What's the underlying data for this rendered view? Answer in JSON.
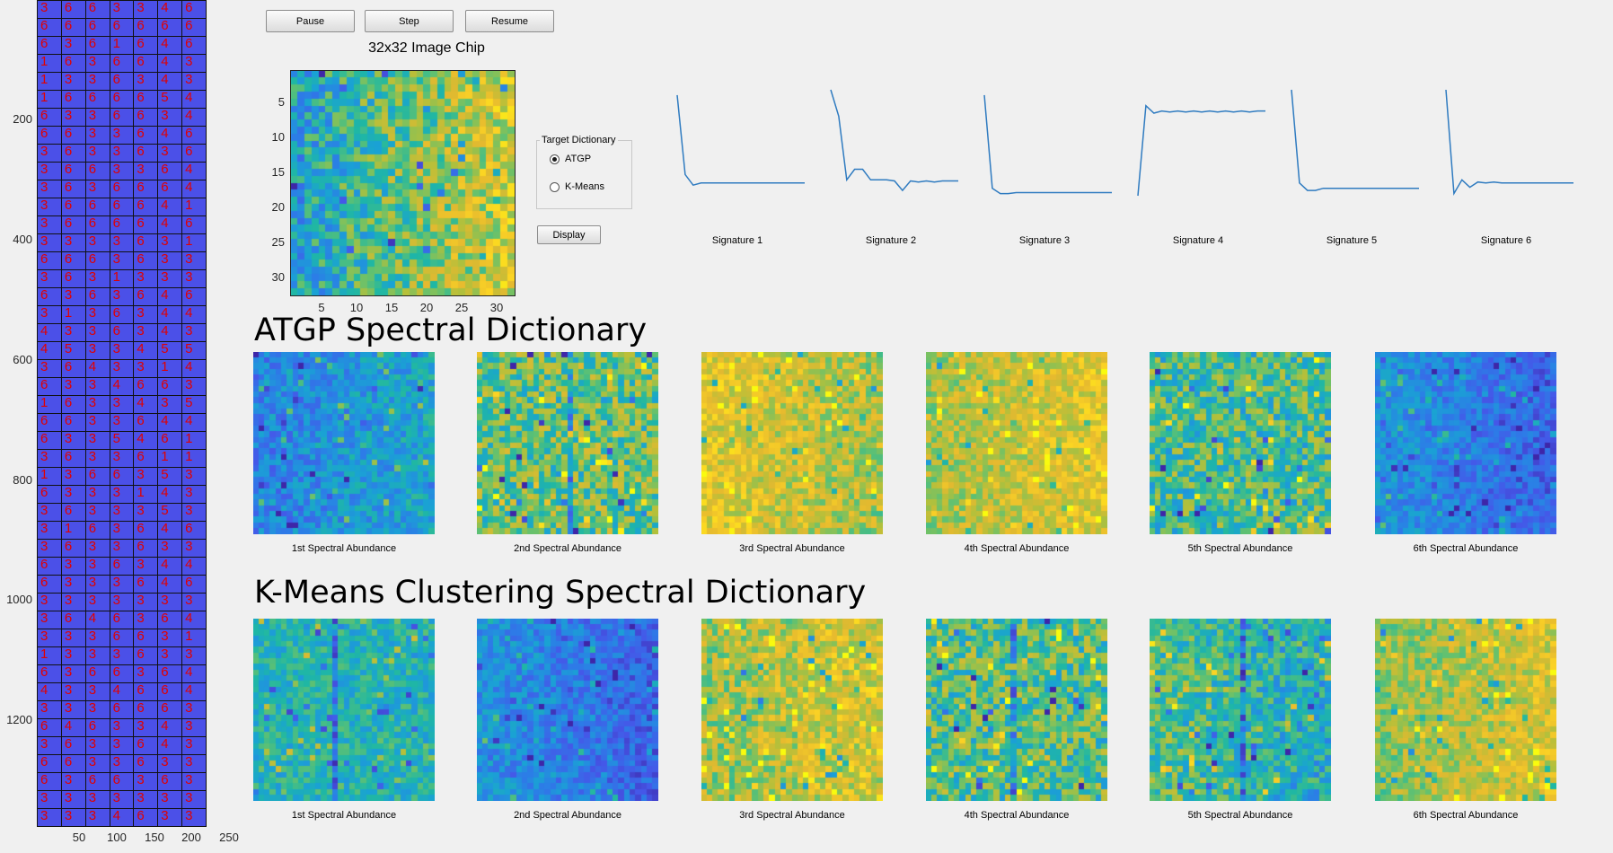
{
  "toolbar": {
    "pause_label": "Pause",
    "step_label": "Step",
    "resume_label": "Resume"
  },
  "chip": {
    "title": "32x32 Image Chip",
    "y_ticks": [
      "5",
      "10",
      "15",
      "20",
      "25",
      "30"
    ],
    "x_ticks": [
      "5",
      "10",
      "15",
      "20",
      "25",
      "30"
    ]
  },
  "target_dictionary": {
    "title": "Target Dictionary",
    "options": [
      {
        "label": "ATGP",
        "selected": true
      },
      {
        "label": "K-Means",
        "selected": false
      }
    ],
    "display_label": "Display"
  },
  "signatures": [
    {
      "label": "Signature 1",
      "values": [
        0.95,
        0.2,
        0.1,
        0.12,
        0.12,
        0.12,
        0.12,
        0.12,
        0.12,
        0.12,
        0.12,
        0.12,
        0.12,
        0.12,
        0.12,
        0.12,
        0.12
      ]
    },
    {
      "label": "Signature 2",
      "values": [
        1.0,
        0.75,
        0.15,
        0.25,
        0.25,
        0.15,
        0.15,
        0.15,
        0.14,
        0.05,
        0.14,
        0.13,
        0.14,
        0.13,
        0.14,
        0.14,
        0.14
      ]
    },
    {
      "label": "Signature 3",
      "values": [
        0.95,
        0.07,
        0.02,
        0.02,
        0.03,
        0.03,
        0.03,
        0.03,
        0.03,
        0.03,
        0.03,
        0.03,
        0.03,
        0.03,
        0.03,
        0.03,
        0.03
      ]
    },
    {
      "label": "Signature 4",
      "values": [
        0.0,
        0.85,
        0.78,
        0.8,
        0.79,
        0.8,
        0.79,
        0.8,
        0.79,
        0.8,
        0.79,
        0.8,
        0.79,
        0.8,
        0.79,
        0.8,
        0.8
      ]
    },
    {
      "label": "Signature 5",
      "values": [
        1.0,
        0.12,
        0.05,
        0.05,
        0.07,
        0.07,
        0.07,
        0.07,
        0.07,
        0.07,
        0.07,
        0.07,
        0.07,
        0.07,
        0.07,
        0.07,
        0.07
      ]
    },
    {
      "label": "Signature 6",
      "values": [
        1.0,
        0.02,
        0.15,
        0.08,
        0.13,
        0.12,
        0.13,
        0.12,
        0.12,
        0.12,
        0.12,
        0.12,
        0.12,
        0.12,
        0.12,
        0.12,
        0.12
      ]
    }
  ],
  "atgp": {
    "title": "ATGP Spectral Dictionary",
    "maps": [
      {
        "label": "1st Spectral Abundance",
        "mean": 0.3,
        "spread": 0.18,
        "stripe": -1
      },
      {
        "label": "2nd Spectral Abundance",
        "mean": 0.55,
        "spread": 0.3,
        "stripe": 16
      },
      {
        "label": "3rd Spectral Abundance",
        "mean": 0.72,
        "spread": 0.22,
        "stripe": -1
      },
      {
        "label": "4th Spectral Abundance",
        "mean": 0.72,
        "spread": 0.2,
        "stripe": -1
      },
      {
        "label": "5th Spectral Abundance",
        "mean": 0.5,
        "spread": 0.3,
        "stripe": -1
      },
      {
        "label": "6th Spectral Abundance",
        "mean": 0.22,
        "spread": 0.14,
        "stripe": -1
      }
    ]
  },
  "kmeans": {
    "title": "K-Means Clustering Spectral Dictionary",
    "maps": [
      {
        "label": "1st Spectral Abundance",
        "mean": 0.42,
        "spread": 0.18,
        "stripe": 14
      },
      {
        "label": "2nd Spectral Abundance",
        "mean": 0.22,
        "spread": 0.15,
        "stripe": -1
      },
      {
        "label": "3rd Spectral Abundance",
        "mean": 0.7,
        "spread": 0.24,
        "stripe": -1
      },
      {
        "label": "4th Spectral Abundance",
        "mean": 0.52,
        "spread": 0.3,
        "stripe": 15
      },
      {
        "label": "5th Spectral Abundance",
        "mean": 0.45,
        "spread": 0.25,
        "stripe": 16
      },
      {
        "label": "6th Spectral Abundance",
        "mean": 0.68,
        "spread": 0.2,
        "stripe": -1
      }
    ]
  },
  "strip": {
    "y_ticks": [
      "200",
      "400",
      "600",
      "800",
      "1000",
      "1200"
    ],
    "x_ticks": [
      "50",
      "100",
      "150",
      "200",
      "250"
    ],
    "rows": [
      [
        "3",
        "6",
        "6",
        "3",
        "3",
        "4",
        "6"
      ],
      [
        "6",
        "6",
        "6",
        "6",
        "6",
        "6",
        "6"
      ],
      [
        "6",
        "3",
        "6",
        "1",
        "6",
        "4",
        "6"
      ],
      [
        "1",
        "6",
        "3",
        "6",
        "6",
        "4",
        "3"
      ],
      [
        "1",
        "3",
        "3",
        "6",
        "3",
        "4",
        "3"
      ],
      [
        "1",
        "6",
        "6",
        "6",
        "6",
        "5",
        "4"
      ],
      [
        "6",
        "3",
        "3",
        "6",
        "6",
        "3",
        "4"
      ],
      [
        "6",
        "6",
        "3",
        "3",
        "6",
        "4",
        "6"
      ],
      [
        "3",
        "6",
        "3",
        "3",
        "6",
        "3",
        "6"
      ],
      [
        "3",
        "6",
        "6",
        "3",
        "3",
        "6",
        "4"
      ],
      [
        "3",
        "6",
        "3",
        "6",
        "6",
        "6",
        "4"
      ],
      [
        "3",
        "6",
        "6",
        "6",
        "6",
        "4",
        "1"
      ],
      [
        "3",
        "6",
        "6",
        "6",
        "6",
        "4",
        "6"
      ],
      [
        "3",
        "3",
        "3",
        "3",
        "6",
        "3",
        "1"
      ],
      [
        "6",
        "6",
        "6",
        "3",
        "6",
        "3",
        "3"
      ],
      [
        "3",
        "6",
        "3",
        "1",
        "3",
        "3",
        "3"
      ],
      [
        "6",
        "3",
        "6",
        "3",
        "6",
        "4",
        "6"
      ],
      [
        "3",
        "1",
        "3",
        "6",
        "3",
        "4",
        "4"
      ],
      [
        "4",
        "3",
        "3",
        "6",
        "3",
        "4",
        "3"
      ],
      [
        "4",
        "5",
        "3",
        "3",
        "4",
        "5",
        "5"
      ],
      [
        "3",
        "6",
        "4",
        "3",
        "3",
        "1",
        "4"
      ],
      [
        "6",
        "3",
        "3",
        "4",
        "6",
        "6",
        "3"
      ],
      [
        "1",
        "6",
        "3",
        "3",
        "4",
        "3",
        "5"
      ],
      [
        "6",
        "6",
        "3",
        "3",
        "6",
        "4",
        "4"
      ],
      [
        "6",
        "3",
        "3",
        "5",
        "4",
        "6",
        "1"
      ],
      [
        "3",
        "6",
        "3",
        "3",
        "6",
        "1",
        "1"
      ],
      [
        "1",
        "3",
        "6",
        "6",
        "3",
        "5",
        "3"
      ],
      [
        "6",
        "3",
        "3",
        "3",
        "1",
        "4",
        "3"
      ],
      [
        "3",
        "6",
        "3",
        "3",
        "3",
        "5",
        "3"
      ],
      [
        "3",
        "1",
        "6",
        "3",
        "6",
        "4",
        "6"
      ],
      [
        "3",
        "6",
        "3",
        "3",
        "6",
        "3",
        "3"
      ],
      [
        "6",
        "3",
        "3",
        "6",
        "3",
        "4",
        "4"
      ],
      [
        "6",
        "3",
        "3",
        "3",
        "6",
        "4",
        "6"
      ],
      [
        "3",
        "3",
        "3",
        "3",
        "3",
        "3",
        "3"
      ],
      [
        "3",
        "6",
        "4",
        "6",
        "3",
        "6",
        "4"
      ],
      [
        "3",
        "3",
        "3",
        "6",
        "6",
        "3",
        "1"
      ],
      [
        "1",
        "3",
        "3",
        "3",
        "6",
        "3",
        "3"
      ],
      [
        "6",
        "3",
        "6",
        "6",
        "3",
        "6",
        "4"
      ],
      [
        "4",
        "3",
        "3",
        "4",
        "6",
        "6",
        "4"
      ],
      [
        "3",
        "3",
        "3",
        "6",
        "6",
        "6",
        "3"
      ],
      [
        "6",
        "4",
        "6",
        "3",
        "3",
        "4",
        "3"
      ],
      [
        "3",
        "6",
        "3",
        "3",
        "6",
        "4",
        "3"
      ],
      [
        "6",
        "6",
        "3",
        "3",
        "6",
        "3",
        "3"
      ],
      [
        "6",
        "3",
        "6",
        "6",
        "3",
        "6",
        "3"
      ],
      [
        "3",
        "3",
        "3",
        "3",
        "3",
        "3",
        "3"
      ],
      [
        "3",
        "3",
        "3",
        "4",
        "6",
        "3",
        "3"
      ]
    ]
  },
  "colormap": [
    "#3e26a8",
    "#4557e8",
    "#2c7de7",
    "#1aa2d4",
    "#1fb7a4",
    "#62c170",
    "#b3c03b",
    "#e5b92f",
    "#fbd225",
    "#f9fb0e"
  ]
}
